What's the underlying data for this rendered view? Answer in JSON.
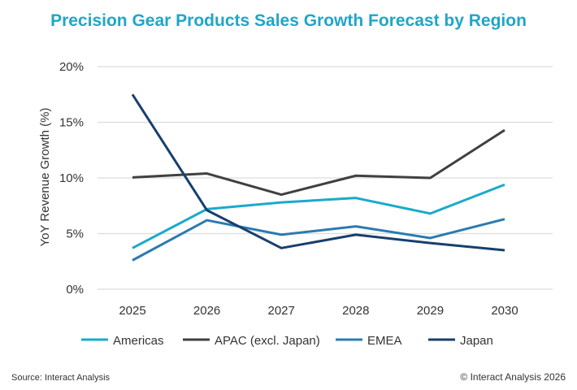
{
  "chart_data": {
    "type": "line",
    "title": "Precision Gear Products Sales Growth Forecast by Region",
    "xlabel": "",
    "ylabel": "YoY Revenue Growth (%)",
    "categories": [
      "2025",
      "2026",
      "2027",
      "2028",
      "2029",
      "2030"
    ],
    "ylim": [
      0,
      20
    ],
    "yticks": [
      0,
      5,
      10,
      15,
      20
    ],
    "ytick_labels": [
      "0%",
      "5%",
      "10%",
      "15%",
      "20%"
    ],
    "grid": "horizontal",
    "legend": "bottom",
    "series": [
      {
        "name": "Americas",
        "color": "#1ba9cc",
        "values": [
          3.7,
          7.2,
          7.8,
          8.2,
          6.8,
          9.4
        ]
      },
      {
        "name": "APAC (excl. Japan)",
        "color": "#404040",
        "values": [
          10.05,
          10.4,
          8.5,
          10.2,
          10.0,
          14.3
        ]
      },
      {
        "name": "EMEA",
        "color": "#2b7bb0",
        "values": [
          2.6,
          6.2,
          4.9,
          5.65,
          4.6,
          6.3
        ]
      },
      {
        "name": "Japan",
        "color": "#173f6e",
        "values": [
          17.5,
          7.1,
          3.7,
          4.9,
          4.15,
          3.5
        ]
      }
    ]
  },
  "footer": {
    "source": "Source: Interact Analysis",
    "copyright": "© Interact Analysis 2026"
  }
}
